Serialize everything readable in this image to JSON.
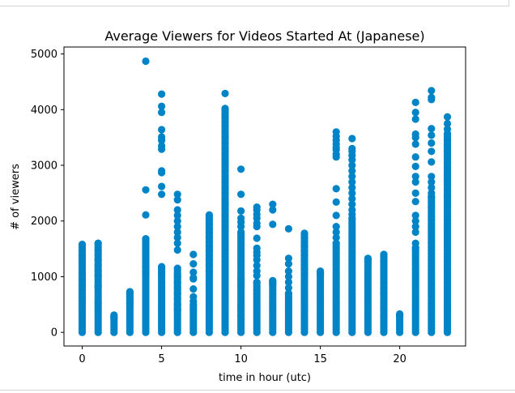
{
  "chart_data": {
    "type": "scatter",
    "title": "Average Viewers for Videos Started At (Japanese)",
    "xlabel": "time in hour (utc)",
    "ylabel": "# of viewers",
    "xlim": [
      -1.15,
      24.15
    ],
    "ylim": [
      -245,
      5125
    ],
    "xticks": [
      0,
      5,
      10,
      15,
      20
    ],
    "yticks": [
      0,
      1000,
      2000,
      3000,
      4000,
      5000
    ],
    "grid": false,
    "legend": "none",
    "marker_color": "#0084c8",
    "columns": [
      {
        "x": 0,
        "max": 1580,
        "sparse": [
          1380,
          1300,
          1050,
          950,
          850,
          760,
          700,
          620,
          560
        ]
      },
      {
        "x": 1,
        "max": 1600,
        "sparse": [
          1480,
          1400,
          1300,
          1200,
          1100,
          1020,
          830,
          530
        ]
      },
      {
        "x": 2,
        "max": 310,
        "sparse": [
          280,
          250
        ]
      },
      {
        "x": 3,
        "max": 730,
        "sparse": [
          690,
          640,
          600,
          560,
          520,
          470
        ]
      },
      {
        "x": 4,
        "max": 1680,
        "sparse": [
          4870,
          2560,
          2110,
          1600,
          1540,
          1480,
          1400,
          1320,
          1250,
          1180,
          1100,
          1050
        ]
      },
      {
        "x": 5,
        "max": 1180,
        "sparse": [
          4280,
          4060,
          3950,
          3640,
          3510,
          3450,
          3350,
          3290,
          2900,
          2870,
          2620,
          2480,
          1150,
          1080
        ]
      },
      {
        "x": 6,
        "max": 1150,
        "sparse": [
          2480,
          2380,
          2200,
          2100,
          2000,
          1900,
          1800,
          1700,
          1600,
          1480,
          1000,
          900,
          800,
          700,
          600,
          500,
          400
        ]
      },
      {
        "x": 7,
        "max": 500,
        "sparse": [
          1400,
          1230,
          1080,
          980,
          960,
          780,
          640,
          560
        ]
      },
      {
        "x": 8,
        "max": 2110,
        "sparse": [
          2030,
          1950,
          1870,
          1780,
          1700,
          1620,
          1540,
          1460,
          1380,
          1300,
          1200,
          1100
        ]
      },
      {
        "x": 9,
        "max": 4020,
        "sparse": [
          4290,
          3920,
          3850,
          3780,
          3700,
          3600,
          3500,
          3400,
          3300,
          3200,
          3100,
          3000,
          2900,
          2800,
          2700,
          2600,
          2500,
          2400,
          2300,
          2200,
          2100,
          2000,
          1900,
          1800
        ]
      },
      {
        "x": 10,
        "max": 1800,
        "sparse": [
          2930,
          2480,
          2180,
          2050,
          1980,
          1900,
          950,
          960,
          840,
          470,
          300
        ]
      },
      {
        "x": 11,
        "max": 900,
        "sparse": [
          2250,
          2200,
          2120,
          2050,
          1960,
          1900,
          1690,
          1510,
          1440,
          1380,
          1300,
          1200,
          1100,
          1020
        ]
      },
      {
        "x": 12,
        "max": 930,
        "sparse": [
          2300,
          2200,
          1940,
          900,
          860
        ]
      },
      {
        "x": 13,
        "max": 700,
        "sparse": [
          1860,
          1330,
          1230,
          1100,
          1000,
          900,
          800
        ]
      },
      {
        "x": 14,
        "max": 1780,
        "sparse": [
          1700,
          1620,
          1540,
          1460,
          1380,
          1300,
          1220,
          1150,
          1080
        ]
      },
      {
        "x": 15,
        "max": 1100,
        "sparse": [
          1060,
          1020
        ]
      },
      {
        "x": 16,
        "max": 1600,
        "sparse": [
          3600,
          3520,
          3450,
          3380,
          3320,
          3280,
          3200,
          3150,
          2580,
          2340,
          2100,
          1900,
          1800,
          1700
        ]
      },
      {
        "x": 17,
        "max": 2050,
        "sparse": [
          3480,
          3300,
          3250,
          3180,
          3100,
          3000,
          2900,
          2800,
          2700,
          2600,
          2500,
          2400,
          2300,
          2200,
          2120
        ]
      },
      {
        "x": 18,
        "max": 1330,
        "sparse": [
          1300,
          1260
        ]
      },
      {
        "x": 19,
        "max": 1400,
        "sparse": [
          1360,
          1280,
          1200,
          1140,
          1080,
          1000,
          900,
          800,
          700,
          560,
          420,
          270
        ]
      },
      {
        "x": 20,
        "max": 330,
        "sparse": [
          310,
          290
        ]
      },
      {
        "x": 21,
        "max": 1520,
        "sparse": [
          4130,
          3950,
          3830,
          3560,
          3500,
          3380,
          3150,
          2980,
          2800,
          2700,
          2500,
          2350,
          2100,
          2000,
          1900,
          1800,
          1600
        ]
      },
      {
        "x": 22,
        "max": 2440,
        "sparse": [
          4340,
          4220,
          4180,
          3660,
          3540,
          3400,
          3250,
          3060,
          2800,
          2700,
          2600,
          2500
        ]
      },
      {
        "x": 23,
        "max": 3570,
        "sparse": [
          3870,
          3750,
          3650,
          3460,
          3360,
          3260,
          3150,
          3050,
          2950,
          2850,
          2750,
          2650,
          2550,
          2450
        ]
      }
    ]
  }
}
